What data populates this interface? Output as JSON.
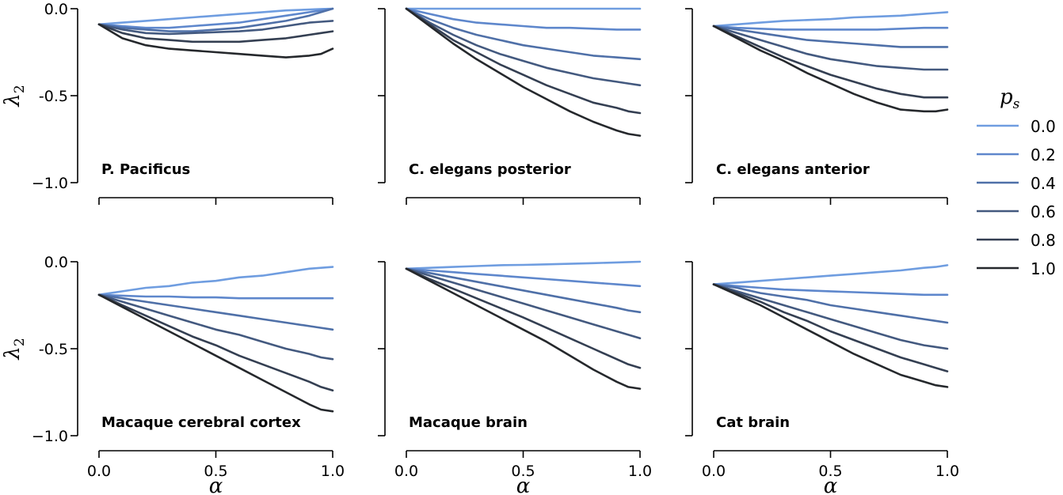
{
  "chart_data": {
    "type": "line",
    "xlabel": "α",
    "ylabel": "λ",
    "ylabel_sub": "2",
    "xlim": [
      0,
      1
    ],
    "ylim": [
      -1.0,
      0.0
    ],
    "xticks": [
      0.0,
      0.5,
      1.0
    ],
    "xtick_labels": [
      "0.0",
      "0.5",
      "1.0"
    ],
    "yticks": [
      0.0,
      -0.5,
      -1.0
    ],
    "ytick_labels": [
      "0.0",
      "-0.5",
      "−1.0"
    ],
    "x": [
      0.0,
      0.1,
      0.2,
      0.3,
      0.4,
      0.5,
      0.6,
      0.7,
      0.8,
      0.9,
      0.95,
      1.0
    ],
    "legend": {
      "title": "p",
      "title_sub": "s",
      "entries": [
        "0.0",
        "0.2",
        "0.4",
        "0.6",
        "0.8",
        "1.0"
      ],
      "colors": [
        "#6f9de0",
        "#5e87cc",
        "#4f70a8",
        "#43597f",
        "#343f52",
        "#25282c"
      ]
    },
    "panels": [
      {
        "title": "P. Pacificus",
        "series": [
          {
            "name": "0.0",
            "values": [
              -0.09,
              -0.08,
              -0.07,
              -0.06,
              -0.05,
              -0.04,
              -0.03,
              -0.02,
              -0.01,
              -0.005,
              -0.002,
              0.0
            ]
          },
          {
            "name": "0.2",
            "values": [
              -0.09,
              -0.1,
              -0.11,
              -0.11,
              -0.1,
              -0.09,
              -0.08,
              -0.06,
              -0.04,
              -0.02,
              -0.01,
              0.0
            ]
          },
          {
            "name": "0.4",
            "values": [
              -0.09,
              -0.11,
              -0.12,
              -0.13,
              -0.13,
              -0.12,
              -0.11,
              -0.09,
              -0.07,
              -0.04,
              -0.02,
              0.0
            ]
          },
          {
            "name": "0.6",
            "values": [
              -0.09,
              -0.12,
              -0.14,
              -0.145,
              -0.14,
              -0.135,
              -0.13,
              -0.12,
              -0.1,
              -0.08,
              -0.075,
              -0.07
            ]
          },
          {
            "name": "0.8",
            "values": [
              -0.09,
              -0.14,
              -0.17,
              -0.18,
              -0.19,
              -0.19,
              -0.19,
              -0.18,
              -0.17,
              -0.15,
              -0.14,
              -0.13
            ]
          },
          {
            "name": "1.0",
            "values": [
              -0.09,
              -0.17,
              -0.21,
              -0.23,
              -0.24,
              -0.25,
              -0.26,
              -0.27,
              -0.28,
              -0.27,
              -0.26,
              -0.23
            ]
          }
        ]
      },
      {
        "title": "C. elegans posterior",
        "series": [
          {
            "name": "0.0",
            "values": [
              0.0,
              0.0,
              0.0,
              0.0,
              0.0,
              0.0,
              0.0,
              0.0,
              0.0,
              0.0,
              0.0,
              0.0
            ]
          },
          {
            "name": "0.2",
            "values": [
              0.0,
              -0.03,
              -0.06,
              -0.08,
              -0.09,
              -0.1,
              -0.11,
              -0.11,
              -0.115,
              -0.12,
              -0.12,
              -0.12
            ]
          },
          {
            "name": "0.4",
            "values": [
              0.0,
              -0.06,
              -0.11,
              -0.15,
              -0.18,
              -0.21,
              -0.23,
              -0.25,
              -0.27,
              -0.28,
              -0.285,
              -0.29
            ]
          },
          {
            "name": "0.6",
            "values": [
              0.0,
              -0.08,
              -0.15,
              -0.21,
              -0.26,
              -0.3,
              -0.34,
              -0.37,
              -0.4,
              -0.42,
              -0.43,
              -0.44
            ]
          },
          {
            "name": "0.8",
            "values": [
              0.0,
              -0.09,
              -0.18,
              -0.25,
              -0.32,
              -0.38,
              -0.44,
              -0.49,
              -0.54,
              -0.57,
              -0.59,
              -0.6
            ]
          },
          {
            "name": "1.0",
            "values": [
              0.0,
              -0.1,
              -0.2,
              -0.29,
              -0.37,
              -0.45,
              -0.52,
              -0.59,
              -0.65,
              -0.7,
              -0.72,
              -0.73
            ]
          }
        ]
      },
      {
        "title": "C. elegans anterior",
        "series": [
          {
            "name": "0.0",
            "values": [
              -0.1,
              -0.09,
              -0.08,
              -0.07,
              -0.065,
              -0.06,
              -0.05,
              -0.045,
              -0.04,
              -0.03,
              -0.025,
              -0.02
            ]
          },
          {
            "name": "0.2",
            "values": [
              -0.1,
              -0.11,
              -0.115,
              -0.12,
              -0.12,
              -0.12,
              -0.12,
              -0.12,
              -0.115,
              -0.11,
              -0.11,
              -0.11
            ]
          },
          {
            "name": "0.4",
            "values": [
              -0.1,
              -0.12,
              -0.14,
              -0.16,
              -0.18,
              -0.19,
              -0.2,
              -0.21,
              -0.22,
              -0.22,
              -0.22,
              -0.22
            ]
          },
          {
            "name": "0.6",
            "values": [
              -0.1,
              -0.14,
              -0.18,
              -0.22,
              -0.26,
              -0.29,
              -0.31,
              -0.33,
              -0.34,
              -0.35,
              -0.35,
              -0.35
            ]
          },
          {
            "name": "0.8",
            "values": [
              -0.1,
              -0.16,
              -0.22,
              -0.28,
              -0.33,
              -0.38,
              -0.42,
              -0.46,
              -0.49,
              -0.51,
              -0.51,
              -0.51
            ]
          },
          {
            "name": "1.0",
            "values": [
              -0.1,
              -0.17,
              -0.24,
              -0.3,
              -0.37,
              -0.43,
              -0.49,
              -0.54,
              -0.58,
              -0.59,
              -0.59,
              -0.58
            ]
          }
        ]
      },
      {
        "title": "Macaque cerebral cortex",
        "series": [
          {
            "name": "0.0",
            "values": [
              -0.19,
              -0.17,
              -0.15,
              -0.14,
              -0.12,
              -0.11,
              -0.09,
              -0.08,
              -0.06,
              -0.04,
              -0.035,
              -0.03
            ]
          },
          {
            "name": "0.2",
            "values": [
              -0.19,
              -0.195,
              -0.2,
              -0.2,
              -0.205,
              -0.205,
              -0.21,
              -0.21,
              -0.21,
              -0.21,
              -0.21,
              -0.21
            ]
          },
          {
            "name": "0.4",
            "values": [
              -0.19,
              -0.21,
              -0.23,
              -0.25,
              -0.27,
              -0.29,
              -0.31,
              -0.33,
              -0.35,
              -0.37,
              -0.38,
              -0.39
            ]
          },
          {
            "name": "0.6",
            "values": [
              -0.19,
              -0.23,
              -0.27,
              -0.31,
              -0.35,
              -0.39,
              -0.42,
              -0.46,
              -0.5,
              -0.53,
              -0.55,
              -0.56
            ]
          },
          {
            "name": "0.8",
            "values": [
              -0.19,
              -0.25,
              -0.31,
              -0.37,
              -0.43,
              -0.48,
              -0.54,
              -0.59,
              -0.64,
              -0.69,
              -0.72,
              -0.74
            ]
          },
          {
            "name": "1.0",
            "values": [
              -0.19,
              -0.26,
              -0.33,
              -0.4,
              -0.47,
              -0.54,
              -0.61,
              -0.68,
              -0.75,
              -0.82,
              -0.85,
              -0.86
            ]
          }
        ]
      },
      {
        "title": "Macaque brain",
        "series": [
          {
            "name": "0.0",
            "values": [
              -0.04,
              -0.035,
              -0.03,
              -0.025,
              -0.02,
              -0.018,
              -0.015,
              -0.012,
              -0.008,
              -0.004,
              -0.002,
              0.0
            ]
          },
          {
            "name": "0.2",
            "values": [
              -0.04,
              -0.05,
              -0.06,
              -0.07,
              -0.08,
              -0.09,
              -0.1,
              -0.11,
              -0.12,
              -0.13,
              -0.135,
              -0.14
            ]
          },
          {
            "name": "0.4",
            "values": [
              -0.04,
              -0.065,
              -0.09,
              -0.115,
              -0.14,
              -0.165,
              -0.19,
              -0.215,
              -0.24,
              -0.265,
              -0.28,
              -0.29
            ]
          },
          {
            "name": "0.6",
            "values": [
              -0.04,
              -0.08,
              -0.12,
              -0.16,
              -0.2,
              -0.24,
              -0.28,
              -0.32,
              -0.36,
              -0.4,
              -0.42,
              -0.44
            ]
          },
          {
            "name": "0.8",
            "values": [
              -0.04,
              -0.1,
              -0.155,
              -0.21,
              -0.265,
              -0.32,
              -0.38,
              -0.44,
              -0.5,
              -0.56,
              -0.59,
              -0.61
            ]
          },
          {
            "name": "1.0",
            "values": [
              -0.04,
              -0.11,
              -0.18,
              -0.25,
              -0.32,
              -0.39,
              -0.46,
              -0.54,
              -0.62,
              -0.69,
              -0.72,
              -0.73
            ]
          }
        ]
      },
      {
        "title": "Cat brain",
        "series": [
          {
            "name": "0.0",
            "values": [
              -0.13,
              -0.12,
              -0.11,
              -0.1,
              -0.09,
              -0.08,
              -0.07,
              -0.06,
              -0.05,
              -0.035,
              -0.03,
              -0.02
            ]
          },
          {
            "name": "0.2",
            "values": [
              -0.13,
              -0.14,
              -0.15,
              -0.16,
              -0.165,
              -0.17,
              -0.175,
              -0.18,
              -0.185,
              -0.19,
              -0.19,
              -0.19
            ]
          },
          {
            "name": "0.4",
            "values": [
              -0.13,
              -0.15,
              -0.18,
              -0.2,
              -0.22,
              -0.25,
              -0.27,
              -0.29,
              -0.31,
              -0.33,
              -0.34,
              -0.35
            ]
          },
          {
            "name": "0.6",
            "values": [
              -0.13,
              -0.17,
              -0.21,
              -0.25,
              -0.29,
              -0.33,
              -0.37,
              -0.41,
              -0.45,
              -0.48,
              -0.49,
              -0.5
            ]
          },
          {
            "name": "0.8",
            "values": [
              -0.13,
              -0.18,
              -0.23,
              -0.29,
              -0.34,
              -0.4,
              -0.45,
              -0.5,
              -0.55,
              -0.59,
              -0.61,
              -0.63
            ]
          },
          {
            "name": "1.0",
            "values": [
              -0.13,
              -0.19,
              -0.25,
              -0.32,
              -0.39,
              -0.46,
              -0.53,
              -0.59,
              -0.65,
              -0.69,
              -0.71,
              -0.72
            ]
          }
        ]
      }
    ]
  }
}
